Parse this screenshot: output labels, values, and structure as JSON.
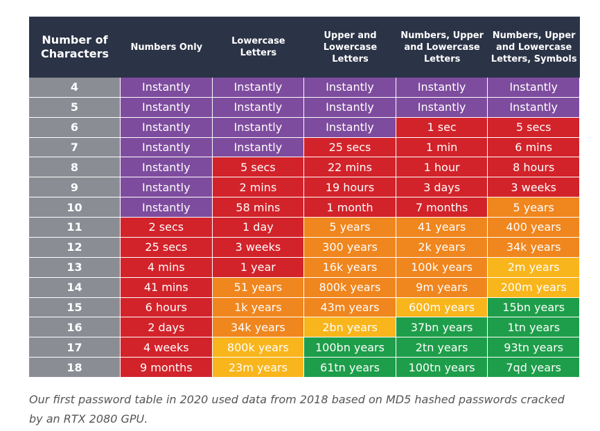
{
  "table": {
    "header": [
      "Number of Characters",
      "Numbers Only",
      "Lowercase Letters",
      "Upper and Lowercase Letters",
      "Numbers, Upper and Lowercase Letters",
      "Numbers, Upper and Lowercase Letters, Symbols"
    ],
    "rows": [
      [
        "4",
        "Instantly",
        "Instantly",
        "Instantly",
        "Instantly",
        "Instantly"
      ],
      [
        "5",
        "Instantly",
        "Instantly",
        "Instantly",
        "Instantly",
        "Instantly"
      ],
      [
        "6",
        "Instantly",
        "Instantly",
        "Instantly",
        "1 sec",
        "5 secs"
      ],
      [
        "7",
        "Instantly",
        "Instantly",
        "25 secs",
        "1 min",
        "6 mins"
      ],
      [
        "8",
        "Instantly",
        "5 secs",
        "22 mins",
        "1 hour",
        "8 hours"
      ],
      [
        "9",
        "Instantly",
        "2 mins",
        "19 hours",
        "3 days",
        "3 weeks"
      ],
      [
        "10",
        "Instantly",
        "58 mins",
        "1 month",
        "7 months",
        "5 years"
      ],
      [
        "11",
        "2 secs",
        "1 day",
        "5 years",
        "41 years",
        "400 years"
      ],
      [
        "12",
        "25 secs",
        "3 weeks",
        "300 years",
        "2k years",
        "34k years"
      ],
      [
        "13",
        "4 mins",
        "1 year",
        "16k years",
        "100k years",
        "2m years"
      ],
      [
        "14",
        "41 mins",
        "51 years",
        "800k years",
        "9m years",
        "200m years"
      ],
      [
        "15",
        "6 hours",
        "1k years",
        "43m years",
        "600m years",
        "15bn years"
      ],
      [
        "16",
        "2 days",
        "34k years",
        "2bn years",
        "37bn years",
        "1tn years"
      ],
      [
        "17",
        "4 weeks",
        "800k years",
        "100bn years",
        "2tn years",
        "93tn years"
      ],
      [
        "18",
        "9 months",
        "23m years",
        "61tn years",
        "100tn years",
        "7qd years"
      ]
    ],
    "cell_colors": [
      [
        "#7e4c9e",
        "#7e4c9e",
        "#7e4c9e",
        "#7e4c9e",
        "#7e4c9e"
      ],
      [
        "#7e4c9e",
        "#7e4c9e",
        "#7e4c9e",
        "#7e4c9e",
        "#7e4c9e"
      ],
      [
        "#7e4c9e",
        "#7e4c9e",
        "#7e4c9e",
        "#d2232a",
        "#d2232a"
      ],
      [
        "#7e4c9e",
        "#7e4c9e",
        "#d2232a",
        "#d2232a",
        "#d2232a"
      ],
      [
        "#7e4c9e",
        "#d2232a",
        "#d2232a",
        "#d2232a",
        "#d2232a"
      ],
      [
        "#7e4c9e",
        "#d2232a",
        "#d2232a",
        "#d2232a",
        "#d2232a"
      ],
      [
        "#7e4c9e",
        "#d2232a",
        "#d2232a",
        "#d2232a",
        "#f0861e"
      ],
      [
        "#d2232a",
        "#d2232a",
        "#f0861e",
        "#f0861e",
        "#f0861e"
      ],
      [
        "#d2232a",
        "#d2232a",
        "#f0861e",
        "#f0861e",
        "#f0861e"
      ],
      [
        "#d2232a",
        "#d2232a",
        "#f0861e",
        "#f0861e",
        "#f9b51c"
      ],
      [
        "#d2232a",
        "#f0861e",
        "#f0861e",
        "#f0861e",
        "#f9b51c"
      ],
      [
        "#d2232a",
        "#f0861e",
        "#f0861e",
        "#f9b51c",
        "#1e9e4a"
      ],
      [
        "#d2232a",
        "#f0861e",
        "#f9b51c",
        "#1e9e4a",
        "#1e9e4a"
      ],
      [
        "#d2232a",
        "#f9b51c",
        "#1e9e4a",
        "#1e9e4a",
        "#1e9e4a"
      ],
      [
        "#d2232a",
        "#f9b51c",
        "#1e9e4a",
        "#1e9e4a",
        "#1e9e4a"
      ]
    ]
  },
  "caption": "Our first password table in 2020 used data from 2018 based on MD5 hashed passwords cracked by an RTX 2080 GPU."
}
